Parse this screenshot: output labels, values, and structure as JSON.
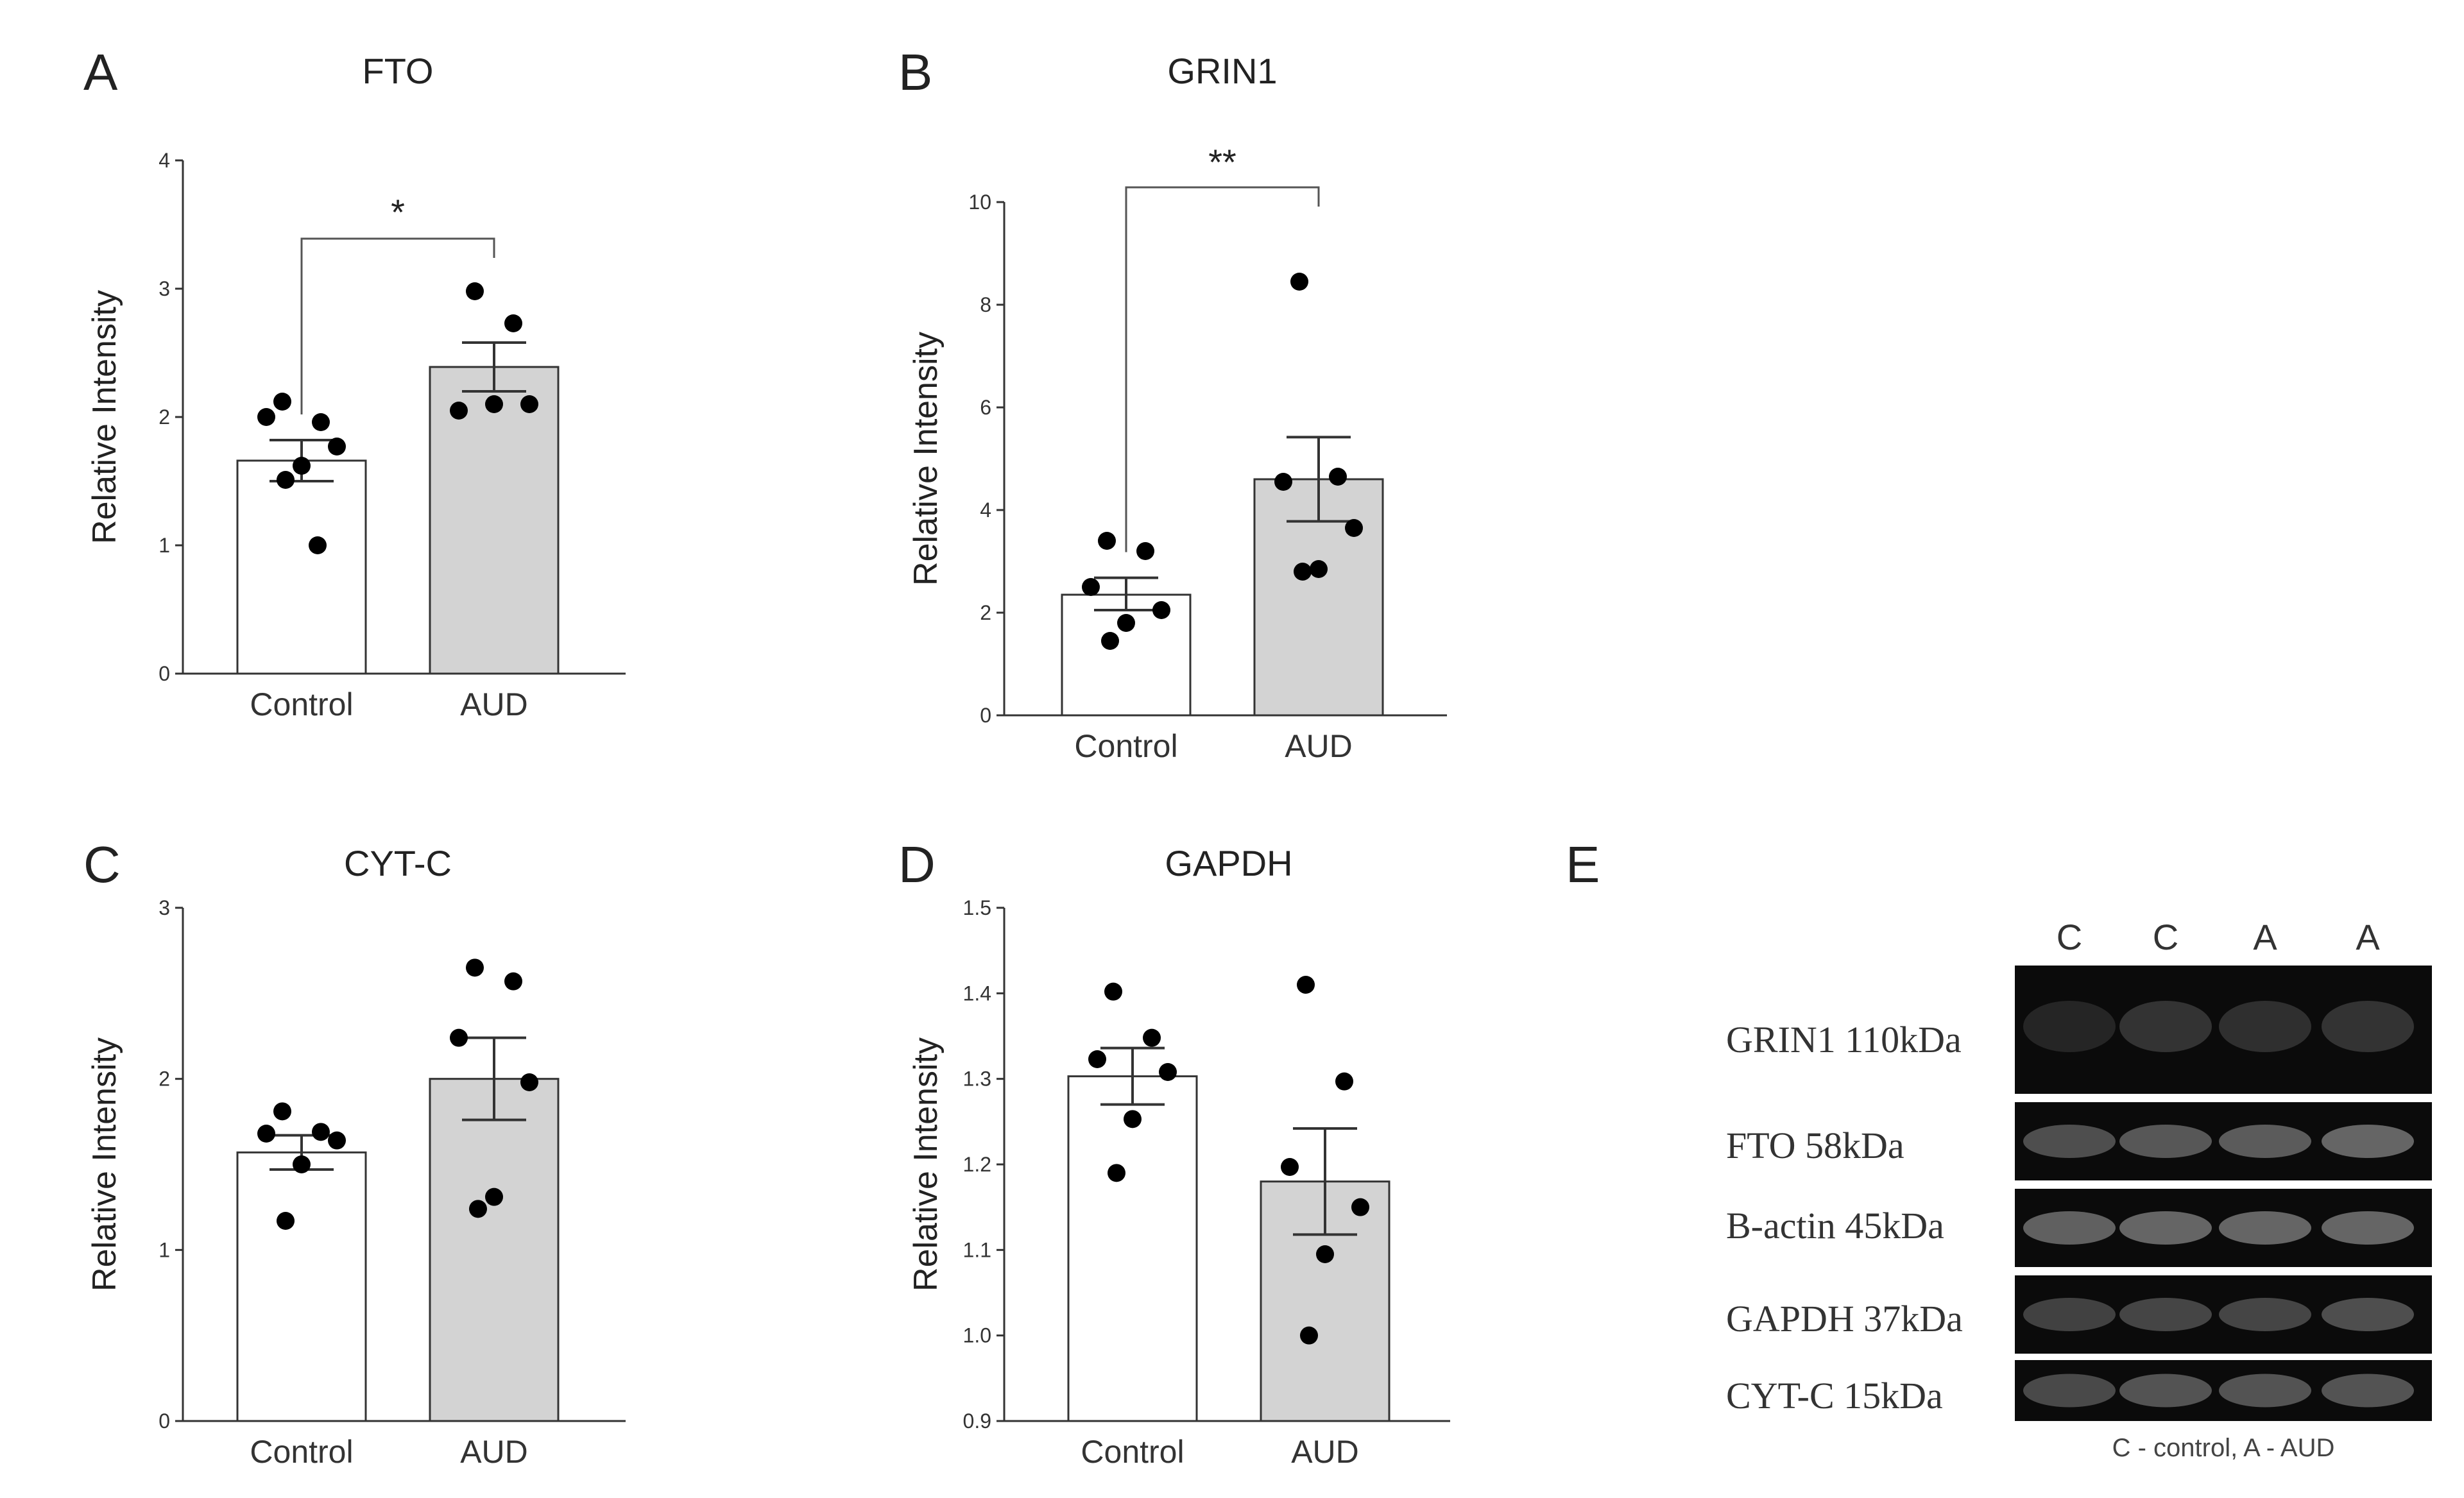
{
  "colors": {
    "control_bar": "#ffffff",
    "aud_bar": "#d3d3d3",
    "axis": "#333333",
    "dot": "#000000",
    "blot_bg": "#0b0b0b",
    "band": "#6a6a6a",
    "band_faint": "#3a3a3a"
  },
  "chart_data": [
    {
      "panel": "A",
      "type": "bar",
      "title": "FTO",
      "ylabel": "Relative Intensity",
      "categories": [
        "Control",
        "AUD"
      ],
      "ylim": [
        0,
        4
      ],
      "yticks": [
        0,
        1,
        2,
        3,
        4
      ],
      "ytick_labels": [
        "0",
        "1",
        "2",
        "3",
        "4"
      ],
      "series": [
        {
          "name": "Control",
          "mean": 1.66,
          "sem_low": 1.5,
          "sem_high": 1.82,
          "points": [
            2.12,
            1.96,
            2.0,
            1.77,
            1.62,
            1.51,
            1.0
          ]
        },
        {
          "name": "AUD",
          "mean": 2.39,
          "sem_low": 2.2,
          "sem_high": 2.58,
          "points": [
            2.98,
            2.73,
            2.05,
            2.1,
            2.1
          ]
        }
      ],
      "significance": "*"
    },
    {
      "panel": "B",
      "type": "bar",
      "title": "GRIN1",
      "ylabel": "Relative Intensity",
      "categories": [
        "Control",
        "AUD"
      ],
      "ylim": [
        0,
        10
      ],
      "yticks": [
        0,
        2,
        4,
        6,
        8,
        10
      ],
      "ytick_labels": [
        "0",
        "2",
        "4",
        "6",
        "8",
        "10"
      ],
      "series": [
        {
          "name": "Control",
          "mean": 2.35,
          "sem_low": 2.05,
          "sem_high": 2.68,
          "points": [
            3.4,
            3.2,
            2.5,
            2.05,
            1.8,
            1.45
          ]
        },
        {
          "name": "AUD",
          "mean": 4.6,
          "sem_low": 3.78,
          "sem_high": 5.42,
          "points": [
            8.45,
            4.65,
            4.55,
            3.65,
            2.85,
            2.8
          ]
        }
      ],
      "significance": "**"
    },
    {
      "panel": "C",
      "type": "bar",
      "title": "CYT-C",
      "ylabel": "Relative Intensity",
      "categories": [
        "Control",
        "AUD"
      ],
      "ylim": [
        0,
        3
      ],
      "yticks": [
        0,
        1,
        2,
        3
      ],
      "ytick_labels": [
        "0",
        "1",
        "2",
        "3"
      ],
      "series": [
        {
          "name": "Control",
          "mean": 1.57,
          "sem_low": 1.47,
          "sem_high": 1.67,
          "points": [
            1.81,
            1.69,
            1.68,
            1.64,
            1.5,
            1.17
          ]
        },
        {
          "name": "AUD",
          "mean": 2.0,
          "sem_low": 1.76,
          "sem_high": 2.24,
          "points": [
            2.65,
            2.57,
            2.24,
            1.98,
            1.31,
            1.24
          ]
        }
      ],
      "significance": ""
    },
    {
      "panel": "D",
      "type": "bar",
      "title": "GAPDH",
      "ylabel": "Relative Intensity",
      "categories": [
        "Control",
        "AUD"
      ],
      "ylim": [
        0.9,
        1.5
      ],
      "yticks": [
        0.9,
        1.0,
        1.1,
        1.2,
        1.3,
        1.4,
        1.5
      ],
      "ytick_labels": [
        "0.9",
        "1.0",
        "1.1",
        "1.2",
        "1.3",
        "1.4",
        "1.5"
      ],
      "series": [
        {
          "name": "Control",
          "mean": 1.303,
          "sem_low": 1.27,
          "sem_high": 1.336,
          "points": [
            1.402,
            1.348,
            1.323,
            1.308,
            1.253,
            1.19
          ]
        },
        {
          "name": "AUD",
          "mean": 1.18,
          "sem_low": 1.118,
          "sem_high": 1.242,
          "points": [
            1.41,
            1.297,
            1.197,
            1.15,
            1.095,
            1.0
          ]
        }
      ],
      "significance": ""
    }
  ],
  "panel_letters": {
    "a": "A",
    "b": "B",
    "c": "C",
    "d": "D",
    "e": "E"
  },
  "blot": {
    "letter": "E",
    "lane_labels": [
      "C",
      "C",
      "A",
      "A"
    ],
    "rows": [
      {
        "label": "GRIN1 110kDa",
        "intensities": [
          0.15,
          0.3,
          0.25,
          0.3
        ]
      },
      {
        "label": "FTO 58kDa",
        "intensities": [
          0.6,
          0.7,
          0.75,
          0.85
        ]
      },
      {
        "label": "B-actin 45kDa",
        "intensities": [
          0.8,
          0.85,
          0.85,
          0.85
        ]
      },
      {
        "label": "GAPDH 37kDa",
        "intensities": [
          0.45,
          0.5,
          0.5,
          0.6
        ]
      },
      {
        "label": "CYT-C 15kDa",
        "intensities": [
          0.55,
          0.65,
          0.65,
          0.65
        ]
      }
    ],
    "legend": "C -  control, A - AUD"
  }
}
